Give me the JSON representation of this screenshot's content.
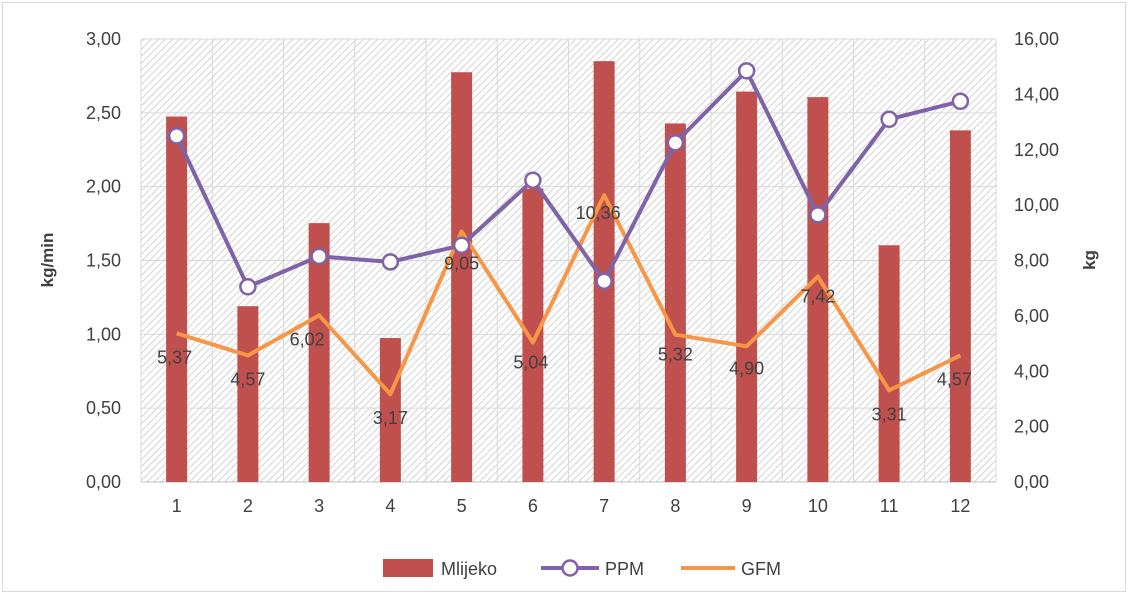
{
  "chart_data": {
    "type": "bar",
    "categories": [
      "1",
      "2",
      "3",
      "4",
      "5",
      "6",
      "7",
      "8",
      "9",
      "10",
      "11",
      "12"
    ],
    "y_left": {
      "label": "kg/min",
      "range": [
        0,
        3
      ],
      "ticks": [
        "0,00",
        "0,50",
        "1,00",
        "1,50",
        "2,00",
        "2,50",
        "3,00"
      ]
    },
    "y_right": {
      "label": "kg",
      "range": [
        0,
        16
      ],
      "ticks": [
        "0,00",
        "2,00",
        "4,00",
        "6,00",
        "8,00",
        "10,00",
        "12,00",
        "14,00",
        "16,00"
      ]
    },
    "series": [
      {
        "name": "Mlijeko",
        "type": "bar",
        "axis": "right",
        "color": "#c0504d",
        "values": [
          13.2,
          6.35,
          9.35,
          5.2,
          14.8,
          10.6,
          15.2,
          12.95,
          14.1,
          13.9,
          8.55,
          12.7
        ]
      },
      {
        "name": "PPM",
        "type": "line",
        "axis": "right",
        "color": "#7f62a8",
        "marker": "circle",
        "values": [
          12.5,
          7.05,
          8.15,
          7.95,
          8.55,
          10.9,
          7.25,
          12.25,
          14.85,
          9.65,
          13.1,
          13.75
        ]
      },
      {
        "name": "GFM",
        "type": "line",
        "axis": "right",
        "color": "#f79646",
        "values": [
          5.37,
          4.57,
          6.02,
          3.17,
          9.05,
          5.04,
          10.36,
          5.32,
          4.9,
          7.42,
          3.31,
          4.57
        ],
        "labels": [
          "5,37",
          "4,57",
          "6,02",
          "3,17",
          "9,05",
          "5,04",
          "10,36",
          "5,32",
          "4,90",
          "7,42",
          "3,31",
          "4,57"
        ]
      }
    ],
    "grid": true,
    "legend_position": "bottom"
  }
}
